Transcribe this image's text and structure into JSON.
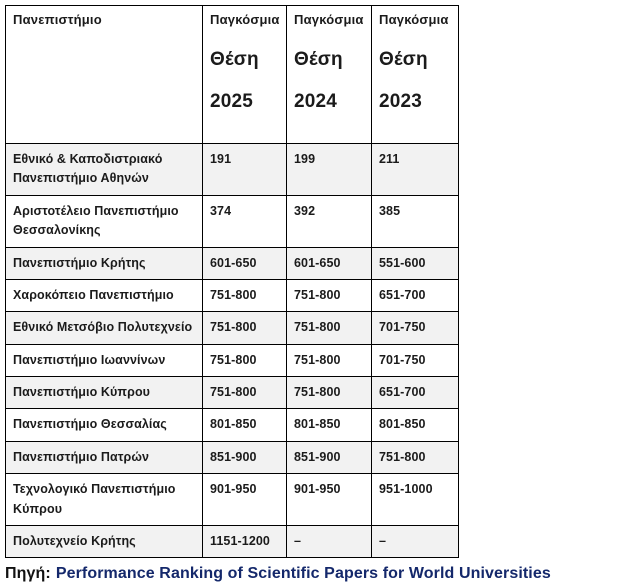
{
  "table": {
    "header": {
      "university_label": "Πανεπιστήμιο",
      "columns": [
        {
          "word": "Παγκόσμια",
          "label": "Θέση",
          "year": "2025"
        },
        {
          "word": "Παγκόσμια",
          "label": "Θέση",
          "year": "2024"
        },
        {
          "word": "Παγκόσμια",
          "label": "Θέση",
          "year": "2023"
        }
      ]
    },
    "rows": [
      {
        "university": "Εθνικό &  Καποδιστριακό Πανεπιστήμιο Αθηνών",
        "ranks": [
          "191",
          "199",
          "211"
        ]
      },
      {
        "university": "Αριστοτέλειο Πανεπιστήμιο Θεσσαλονίκης",
        "ranks": [
          "374",
          "392",
          "385"
        ]
      },
      {
        "university": "Πανεπιστήμιο Κρήτης",
        "ranks": [
          "601-650",
          "601-650",
          "551-600"
        ]
      },
      {
        "university": "Χαροκόπειο Πανεπιστήμιο",
        "ranks": [
          "751-800",
          "751-800",
          "651-700"
        ]
      },
      {
        "university": "Εθνικό Μετσόβιο Πολυτεχνείο",
        "ranks": [
          "751-800",
          "751-800",
          "701-750"
        ]
      },
      {
        "university": "Πανεπιστήμιο Ιωαννίνων",
        "ranks": [
          "751-800",
          "751-800",
          "701-750"
        ]
      },
      {
        "university": "Πανεπιστήμιο Κύπρου",
        "ranks": [
          "751-800",
          "751-800",
          "651-700"
        ]
      },
      {
        "university": "Πανεπιστήμιο Θεσσαλίας",
        "ranks": [
          "801-850",
          "801-850",
          "801-850"
        ]
      },
      {
        "university": "Πανεπιστήμιο Πατρών",
        "ranks": [
          "851-900",
          "851-900",
          "751-800"
        ]
      },
      {
        "university": "Τεχνολογικό Πανεπιστήμιο Κύπρου",
        "ranks": [
          "901-950",
          "901-950",
          "951-1000"
        ]
      },
      {
        "university": "Πολυτεχνείο Κρήτης",
        "ranks": [
          "1151-1200",
          "–",
          "–"
        ]
      }
    ]
  },
  "footer": {
    "source_label": "Πηγή:",
    "link_text": "Performance Ranking of Scientific Papers for World Universities"
  },
  "colors": {
    "row_alt_background": "#f2f2f2",
    "border": "#000000",
    "link": "#14286b",
    "text": "#1b1b1b"
  }
}
